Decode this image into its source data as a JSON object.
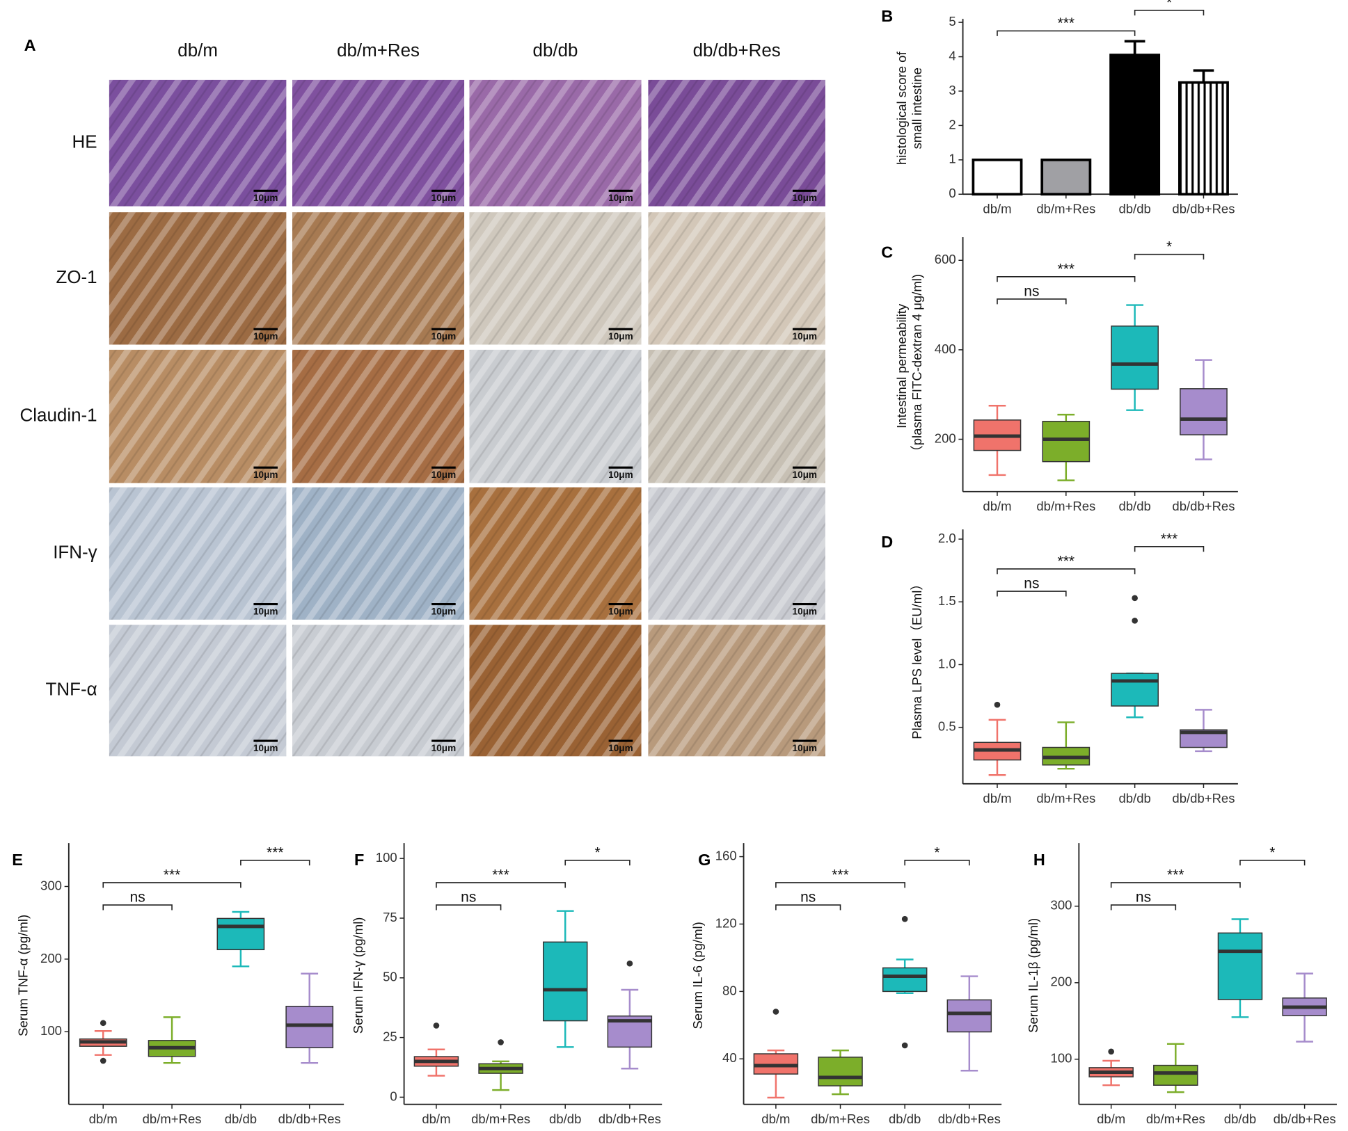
{
  "panel_a": {
    "panel": "A",
    "columns": [
      "db/m",
      "db/m+Res",
      "db/db",
      "db/db+Res"
    ],
    "rows": [
      "HE",
      "ZO-1",
      "Claudin-1",
      "IFN-γ",
      "TNF-α"
    ],
    "scale_bar": "10μm"
  },
  "chart_data": [
    {
      "panel": "B",
      "type": "bar",
      "y_label": [
        "histological score of",
        "small intestine"
      ],
      "categories": [
        "db/m",
        "db/m+Res",
        "db/db",
        "db/db+Res"
      ],
      "values": [
        1.0,
        1.0,
        4.05,
        3.25
      ],
      "errors": [
        0,
        0,
        0.4,
        0.35
      ],
      "colors": [
        "#ffffff",
        "#a0a0a4",
        "#000000",
        "#ffffff"
      ],
      "hatch": [
        false,
        false,
        false,
        true
      ],
      "ylim": [
        0,
        5
      ],
      "yticks": [
        0,
        1,
        2,
        3,
        4,
        5
      ],
      "annotations": [
        {
          "between": [
            "db/m",
            "db/db"
          ],
          "label": "***"
        },
        {
          "between": [
            "db/db",
            "db/db+Res"
          ],
          "label": "*"
        }
      ]
    },
    {
      "panel": "C",
      "type": "box",
      "y_label": [
        "Intestinal permeability",
        "（plasma FITC-dextran 4 μg/ml)"
      ],
      "categories": [
        "db/m",
        "db/m+Res",
        "db/db",
        "db/db+Res"
      ],
      "colors": [
        "#f0736b",
        "#7cae2a",
        "#1cb9b9",
        "#a68ccc"
      ],
      "boxes": [
        {
          "whisker_low": 120,
          "q1": 175,
          "median": 207,
          "q3": 243,
          "whisker_high": 275,
          "outliers": []
        },
        {
          "whisker_low": 108,
          "q1": 150,
          "median": 200,
          "q3": 240,
          "whisker_high": 255,
          "outliers": []
        },
        {
          "whisker_low": 265,
          "q1": 312,
          "median": 368,
          "q3": 453,
          "whisker_high": 500,
          "outliers": []
        },
        {
          "whisker_low": 155,
          "q1": 210,
          "median": 245,
          "q3": 313,
          "whisker_high": 377,
          "outliers": []
        }
      ],
      "ylim": [
        83,
        644
      ],
      "yticks": [
        200,
        400,
        600
      ],
      "annotations": [
        {
          "between": [
            "db/m",
            "db/m+Res"
          ],
          "label": "ns"
        },
        {
          "between": [
            "db/m",
            "db/db"
          ],
          "label": "***"
        },
        {
          "between": [
            "db/db",
            "db/db+Res"
          ],
          "label": "*"
        }
      ]
    },
    {
      "panel": "D",
      "type": "box",
      "y_label": [
        "Plasma LPS level（EU/ml）"
      ],
      "categories": [
        "db/m",
        "db/m+Res",
        "db/db",
        "db/db+Res"
      ],
      "colors": [
        "#f0736b",
        "#7cae2a",
        "#1cb9b9",
        "#a68ccc"
      ],
      "boxes": [
        {
          "whisker_low": 0.12,
          "q1": 0.24,
          "median": 0.32,
          "q3": 0.38,
          "whisker_high": 0.56,
          "outliers": [
            0.68
          ]
        },
        {
          "whisker_low": 0.17,
          "q1": 0.2,
          "median": 0.26,
          "q3": 0.34,
          "whisker_high": 0.54,
          "outliers": []
        },
        {
          "whisker_low": 0.58,
          "q1": 0.67,
          "median": 0.87,
          "q3": 0.93,
          "whisker_high": 0.93,
          "outliers": [
            1.35,
            1.53
          ]
        },
        {
          "whisker_low": 0.31,
          "q1": 0.34,
          "median": 0.46,
          "q3": 0.48,
          "whisker_high": 0.64,
          "outliers": []
        }
      ],
      "ylim": [
        0.05,
        2.05
      ],
      "yticks": [
        0.5,
        {
          "value": 1,
          "label": "1.0"
        },
        1.5,
        {
          "value": 2,
          "label": "2.0"
        }
      ],
      "annotations": [
        {
          "between": [
            "db/m",
            "db/m+Res"
          ],
          "label": "ns"
        },
        {
          "between": [
            "db/m",
            "db/db"
          ],
          "label": "***"
        },
        {
          "between": [
            "db/db",
            "db/db+Res"
          ],
          "label": "***"
        }
      ]
    },
    {
      "panel": "E",
      "type": "box",
      "y_label": [
        "Serum TNF-α (pg/ml)"
      ],
      "categories": [
        "db/m",
        "db/m+Res",
        "db/db",
        "db/db+Res"
      ],
      "colors": [
        "#f0736b",
        "#7cae2a",
        "#1cb9b9",
        "#a68ccc"
      ],
      "boxes": [
        {
          "whisker_low": 68,
          "q1": 80,
          "median": 86,
          "q3": 90,
          "whisker_high": 101,
          "outliers": [
            112,
            60
          ]
        },
        {
          "whisker_low": 57,
          "q1": 66,
          "median": 78,
          "q3": 88,
          "whisker_high": 120,
          "outliers": []
        },
        {
          "whisker_low": 190,
          "q1": 213,
          "median": 245,
          "q3": 256,
          "whisker_high": 265,
          "outliers": []
        },
        {
          "whisker_low": 57,
          "q1": 78,
          "median": 109,
          "q3": 135,
          "whisker_high": 180,
          "outliers": []
        }
      ],
      "ylim": [
        0,
        355
      ],
      "yticks": [
        100,
        200,
        300
      ],
      "annotations": [
        {
          "between": [
            "db/m",
            "db/m+Res"
          ],
          "label": "ns"
        },
        {
          "between": [
            "db/m",
            "db/db"
          ],
          "label": "***"
        },
        {
          "between": [
            "db/db",
            "db/db+Res"
          ],
          "label": "***"
        }
      ]
    },
    {
      "panel": "F",
      "type": "box",
      "y_label": [
        "Serum IFN-γ (pg/ml)"
      ],
      "categories": [
        "db/m",
        "db/m+Res",
        "db/db",
        "db/db+Res"
      ],
      "colors": [
        "#f0736b",
        "#7cae2a",
        "#1cb9b9",
        "#a68ccc"
      ],
      "boxes": [
        {
          "whisker_low": 9,
          "q1": 13,
          "median": 15,
          "q3": 17,
          "whisker_high": 20,
          "outliers": [
            30
          ]
        },
        {
          "whisker_low": 3,
          "q1": 10,
          "median": 12,
          "q3": 14,
          "whisker_high": 15,
          "outliers": [
            23
          ]
        },
        {
          "whisker_low": 21,
          "q1": 32,
          "median": 45,
          "q3": 65,
          "whisker_high": 78,
          "outliers": []
        },
        {
          "whisker_low": 12,
          "q1": 21,
          "median": 32,
          "q3": 34,
          "whisker_high": 45,
          "outliers": [
            56
          ]
        }
      ],
      "ylim": [
        -3,
        105
      ],
      "yticks": [
        0,
        25,
        50,
        75,
        100
      ],
      "annotations": [
        {
          "between": [
            "db/m",
            "db/m+Res"
          ],
          "label": "ns"
        },
        {
          "between": [
            "db/m",
            "db/db"
          ],
          "label": "***"
        },
        {
          "between": [
            "db/db",
            "db/db+Res"
          ],
          "label": "*"
        }
      ]
    },
    {
      "panel": "G",
      "type": "box",
      "y_label": [
        "Serum IL-6 (pg/ml)"
      ],
      "categories": [
        "db/m",
        "db/m+Res",
        "db/db",
        "db/db+Res"
      ],
      "colors": [
        "#f0736b",
        "#7cae2a",
        "#1cb9b9",
        "#a68ccc"
      ],
      "boxes": [
        {
          "whisker_low": 17,
          "q1": 31,
          "median": 36,
          "q3": 43,
          "whisker_high": 45,
          "outliers": [
            68
          ]
        },
        {
          "whisker_low": 19,
          "q1": 24,
          "median": 29,
          "q3": 41,
          "whisker_high": 45,
          "outliers": []
        },
        {
          "whisker_low": 79,
          "q1": 80,
          "median": 89,
          "q3": 94,
          "whisker_high": 99,
          "outliers": [
            123,
            48
          ]
        },
        {
          "whisker_low": 33,
          "q1": 56,
          "median": 67,
          "q3": 75,
          "whisker_high": 89,
          "outliers": []
        }
      ],
      "ylim": [
        13,
        166
      ],
      "yticks": [
        40,
        80,
        120,
        160
      ],
      "annotations": [
        {
          "between": [
            "db/m",
            "db/m+Res"
          ],
          "label": "ns"
        },
        {
          "between": [
            "db/m",
            "db/db"
          ],
          "label": "***"
        },
        {
          "between": [
            "db/db",
            "db/db+Res"
          ],
          "label": "*"
        }
      ]
    },
    {
      "panel": "H",
      "type": "box",
      "y_label": [
        "Serum IL-1β (pg/ml)"
      ],
      "categories": [
        "db/m",
        "db/m+Res",
        "db/db",
        "db/db+Res"
      ],
      "colors": [
        "#f0736b",
        "#7cae2a",
        "#1cb9b9",
        "#a68ccc"
      ],
      "boxes": [
        {
          "whisker_low": 66,
          "q1": 77,
          "median": 83,
          "q3": 89,
          "whisker_high": 98,
          "outliers": [
            110
          ]
        },
        {
          "whisker_low": 57,
          "q1": 66,
          "median": 82,
          "q3": 92,
          "whisker_high": 120,
          "outliers": []
        },
        {
          "whisker_low": 155,
          "q1": 178,
          "median": 241,
          "q3": 265,
          "whisker_high": 283,
          "outliers": []
        },
        {
          "whisker_low": 123,
          "q1": 157,
          "median": 168,
          "q3": 180,
          "whisker_high": 212,
          "outliers": []
        }
      ],
      "ylim": [
        41,
        378
      ],
      "yticks": [
        100,
        200,
        300
      ],
      "annotations": [
        {
          "between": [
            "db/m",
            "db/m+Res"
          ],
          "label": "ns"
        },
        {
          "between": [
            "db/m",
            "db/db"
          ],
          "label": "***"
        },
        {
          "between": [
            "db/db",
            "db/db+Res"
          ],
          "label": "*"
        }
      ]
    }
  ]
}
